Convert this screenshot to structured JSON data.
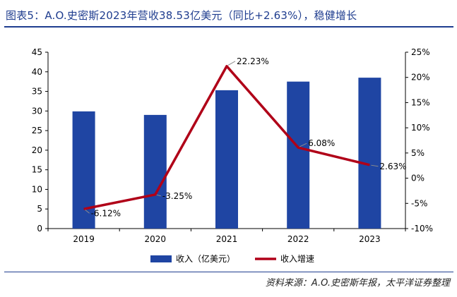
{
  "title": "图表5：A.O.史密斯2023年营收38.53亿美元（同比+2.63%），稳健增长",
  "source": "资料来源：A.O.史密斯年报，太平洋证券整理",
  "colors": {
    "bar": "#1f45a3",
    "line": "#b00018",
    "title": "#1f3d8f"
  },
  "chart_data": {
    "type": "bar+line",
    "categories": [
      "2019",
      "2020",
      "2021",
      "2022",
      "2023"
    ],
    "series": [
      {
        "name": "收入（亿美元）",
        "type": "bar",
        "axis": "left",
        "values": [
          29.9,
          29.0,
          35.3,
          37.5,
          38.5
        ]
      },
      {
        "name": "收入增速",
        "type": "line",
        "axis": "right",
        "values": [
          -6.12,
          -3.25,
          22.23,
          6.08,
          2.63
        ],
        "labels": [
          "-6.12%",
          "-3.25%",
          "22.23%",
          "6.08%",
          "2.63%"
        ]
      }
    ],
    "y_left": {
      "min": 0,
      "max": 45,
      "step": 5,
      "ticks": [
        "0",
        "5",
        "10",
        "15",
        "20",
        "25",
        "30",
        "35",
        "40",
        "45"
      ]
    },
    "y_right": {
      "min": -10,
      "max": 25,
      "step": 5,
      "ticks": [
        "-10%",
        "-5%",
        "0%",
        "5%",
        "10%",
        "15%",
        "20%",
        "25%"
      ]
    },
    "legend": {
      "position": "bottom"
    },
    "grid": false
  }
}
